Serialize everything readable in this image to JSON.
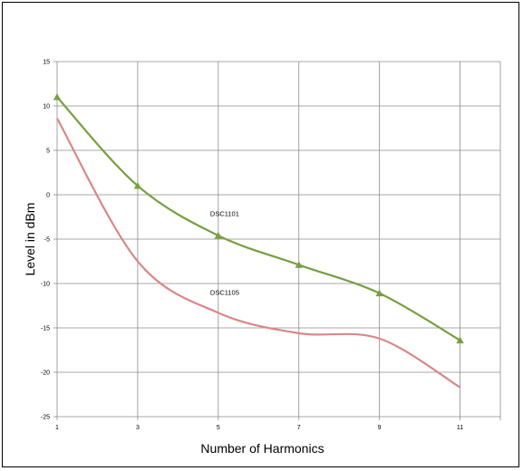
{
  "chart_data": {
    "type": "line",
    "title": "",
    "xlabel": "Number of Harmonics",
    "ylabel": "Level in dBm",
    "x": [
      1,
      3,
      5,
      7,
      9,
      11
    ],
    "xlim": [
      1,
      12
    ],
    "ylim": [
      -25,
      15
    ],
    "x_ticks": [
      "1",
      "3",
      "5",
      "7",
      "9",
      "11"
    ],
    "y_ticks": [
      "15",
      "10",
      "5",
      "0",
      "-5",
      "-10",
      "-15",
      "-20",
      "-25"
    ],
    "grid": true,
    "legend": "none",
    "series": [
      {
        "name": "DSC1101",
        "values": [
          11,
          1,
          -4.6,
          -7.9,
          -11.1,
          -16.4
        ],
        "color": "#77a040",
        "marker": "triangle"
      },
      {
        "name": "DSC1105",
        "values": [
          8.6,
          -7.5,
          -13.3,
          -15.6,
          -16.2,
          -21.7
        ],
        "color": "#d98888",
        "marker": "none"
      }
    ]
  }
}
